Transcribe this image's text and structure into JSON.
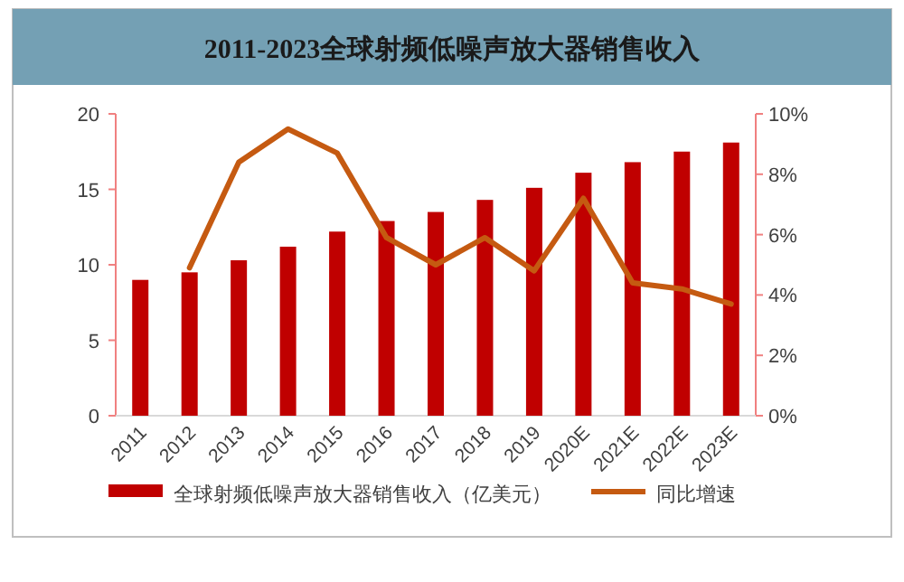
{
  "chart_data": {
    "type": "bar",
    "title": "2011-2023全球射频低噪声放大器销售收入",
    "categories": [
      "2011",
      "2012",
      "2013",
      "2014",
      "2015",
      "2016",
      "2017",
      "2018",
      "2019",
      "2020E",
      "2021E",
      "2022E",
      "2023E"
    ],
    "series": [
      {
        "name": "全球射频低噪声放大器销售收入（亿美元）",
        "color": "#c00000",
        "values": [
          9.0,
          9.5,
          10.3,
          11.2,
          12.2,
          12.9,
          13.5,
          14.3,
          15.1,
          16.1,
          16.8,
          17.5,
          18.1
        ]
      },
      {
        "name": "同比增速",
        "type": "line",
        "axis": "y2",
        "color": "#c55a11",
        "values": [
          null,
          4.9,
          8.4,
          9.5,
          8.7,
          5.9,
          5.0,
          5.9,
          4.8,
          7.2,
          4.4,
          4.2,
          3.7
        ]
      }
    ],
    "ylim": [
      0,
      20
    ],
    "yticks": [
      0,
      5,
      10,
      15,
      20
    ],
    "y2lim": [
      0,
      10
    ],
    "y2ticks": [
      {
        "value": 0,
        "label": "0%"
      },
      {
        "value": 2,
        "label": "2%"
      },
      {
        "value": 4,
        "label": "4%"
      },
      {
        "value": 6,
        "label": "6%"
      },
      {
        "value": 8,
        "label": "8%"
      },
      {
        "value": 10,
        "label": "10%"
      }
    ],
    "legend": "bottom"
  }
}
